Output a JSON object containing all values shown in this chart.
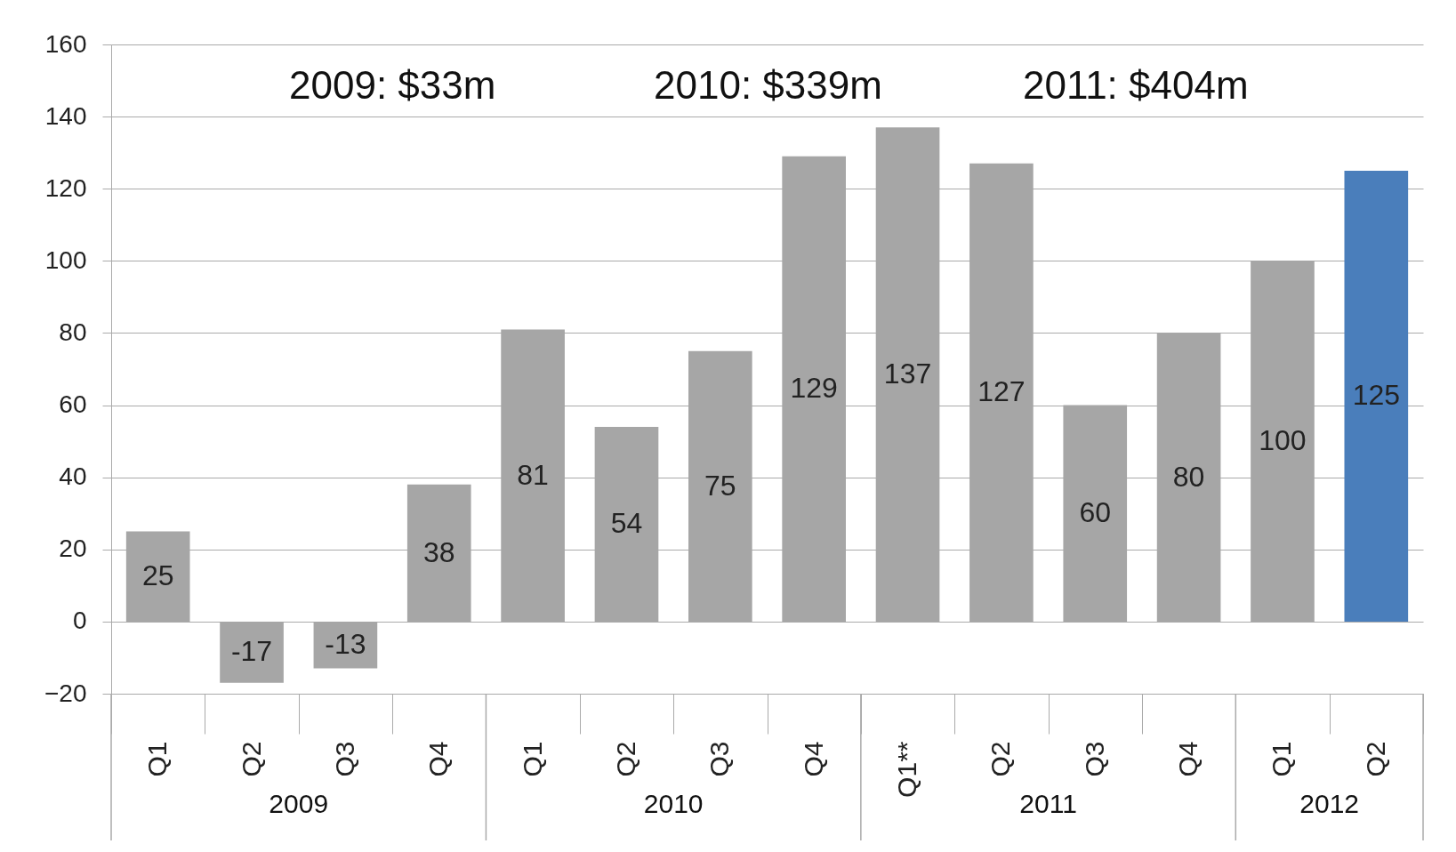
{
  "chart_data": {
    "type": "bar",
    "categories": [
      "Q1",
      "Q2",
      "Q3",
      "Q4",
      "Q1",
      "Q2",
      "Q3",
      "Q4",
      "Q1**",
      "Q2",
      "Q3",
      "Q4",
      "Q1",
      "Q2"
    ],
    "values": [
      25,
      -17,
      -13,
      38,
      81,
      54,
      75,
      129,
      137,
      127,
      60,
      80,
      100,
      125
    ],
    "colors": [
      "#a6a6a6",
      "#a6a6a6",
      "#a6a6a6",
      "#a6a6a6",
      "#a6a6a6",
      "#a6a6a6",
      "#a6a6a6",
      "#a6a6a6",
      "#a6a6a6",
      "#a6a6a6",
      "#a6a6a6",
      "#a6a6a6",
      "#a6a6a6",
      "#4a7ebb"
    ],
    "ylim": [
      -20,
      160
    ],
    "yticks": [
      -20,
      0,
      20,
      40,
      60,
      80,
      100,
      120,
      140,
      160
    ],
    "grid": "y",
    "data_labels": true,
    "annotations": [
      "2009: $33m",
      "2010: $339m",
      "2011: $404m",
      "2009",
      "2010",
      "2011",
      "2012"
    ]
  }
}
